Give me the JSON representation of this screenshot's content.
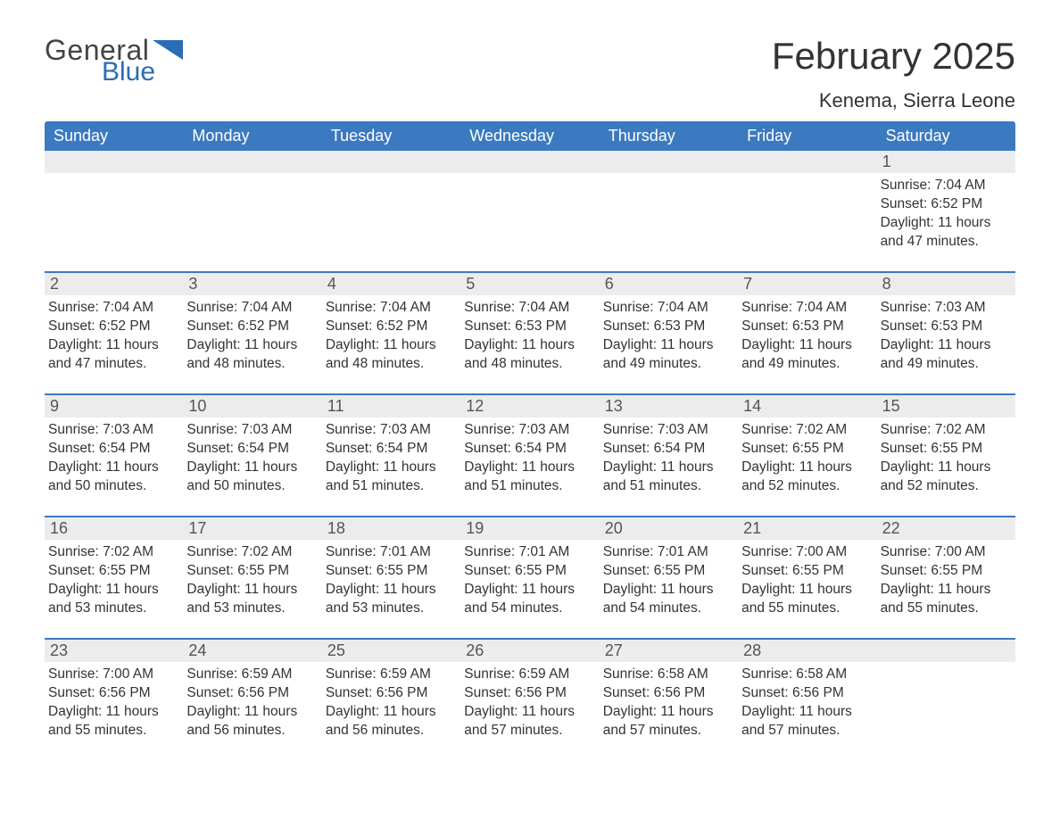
{
  "brand": {
    "word1": "General",
    "word2": "Blue",
    "color1": "#444444",
    "color2": "#2a6db5"
  },
  "title": "February 2025",
  "location": "Kenema, Sierra Leone",
  "header_bg": "#3b7ac0",
  "header_fg": "#ffffff",
  "daynum_bg": "#ececec",
  "divider_color": "#3b7ac0",
  "text_color": "#333333",
  "days_of_week": [
    "Sunday",
    "Monday",
    "Tuesday",
    "Wednesday",
    "Thursday",
    "Friday",
    "Saturday"
  ],
  "weeks": [
    [
      {
        "n": "",
        "sunrise": "",
        "sunset": "",
        "daylight": ""
      },
      {
        "n": "",
        "sunrise": "",
        "sunset": "",
        "daylight": ""
      },
      {
        "n": "",
        "sunrise": "",
        "sunset": "",
        "daylight": ""
      },
      {
        "n": "",
        "sunrise": "",
        "sunset": "",
        "daylight": ""
      },
      {
        "n": "",
        "sunrise": "",
        "sunset": "",
        "daylight": ""
      },
      {
        "n": "",
        "sunrise": "",
        "sunset": "",
        "daylight": ""
      },
      {
        "n": "1",
        "sunrise": "Sunrise: 7:04 AM",
        "sunset": "Sunset: 6:52 PM",
        "daylight": "Daylight: 11 hours and 47 minutes."
      }
    ],
    [
      {
        "n": "2",
        "sunrise": "Sunrise: 7:04 AM",
        "sunset": "Sunset: 6:52 PM",
        "daylight": "Daylight: 11 hours and 47 minutes."
      },
      {
        "n": "3",
        "sunrise": "Sunrise: 7:04 AM",
        "sunset": "Sunset: 6:52 PM",
        "daylight": "Daylight: 11 hours and 48 minutes."
      },
      {
        "n": "4",
        "sunrise": "Sunrise: 7:04 AM",
        "sunset": "Sunset: 6:52 PM",
        "daylight": "Daylight: 11 hours and 48 minutes."
      },
      {
        "n": "5",
        "sunrise": "Sunrise: 7:04 AM",
        "sunset": "Sunset: 6:53 PM",
        "daylight": "Daylight: 11 hours and 48 minutes."
      },
      {
        "n": "6",
        "sunrise": "Sunrise: 7:04 AM",
        "sunset": "Sunset: 6:53 PM",
        "daylight": "Daylight: 11 hours and 49 minutes."
      },
      {
        "n": "7",
        "sunrise": "Sunrise: 7:04 AM",
        "sunset": "Sunset: 6:53 PM",
        "daylight": "Daylight: 11 hours and 49 minutes."
      },
      {
        "n": "8",
        "sunrise": "Sunrise: 7:03 AM",
        "sunset": "Sunset: 6:53 PM",
        "daylight": "Daylight: 11 hours and 49 minutes."
      }
    ],
    [
      {
        "n": "9",
        "sunrise": "Sunrise: 7:03 AM",
        "sunset": "Sunset: 6:54 PM",
        "daylight": "Daylight: 11 hours and 50 minutes."
      },
      {
        "n": "10",
        "sunrise": "Sunrise: 7:03 AM",
        "sunset": "Sunset: 6:54 PM",
        "daylight": "Daylight: 11 hours and 50 minutes."
      },
      {
        "n": "11",
        "sunrise": "Sunrise: 7:03 AM",
        "sunset": "Sunset: 6:54 PM",
        "daylight": "Daylight: 11 hours and 51 minutes."
      },
      {
        "n": "12",
        "sunrise": "Sunrise: 7:03 AM",
        "sunset": "Sunset: 6:54 PM",
        "daylight": "Daylight: 11 hours and 51 minutes."
      },
      {
        "n": "13",
        "sunrise": "Sunrise: 7:03 AM",
        "sunset": "Sunset: 6:54 PM",
        "daylight": "Daylight: 11 hours and 51 minutes."
      },
      {
        "n": "14",
        "sunrise": "Sunrise: 7:02 AM",
        "sunset": "Sunset: 6:55 PM",
        "daylight": "Daylight: 11 hours and 52 minutes."
      },
      {
        "n": "15",
        "sunrise": "Sunrise: 7:02 AM",
        "sunset": "Sunset: 6:55 PM",
        "daylight": "Daylight: 11 hours and 52 minutes."
      }
    ],
    [
      {
        "n": "16",
        "sunrise": "Sunrise: 7:02 AM",
        "sunset": "Sunset: 6:55 PM",
        "daylight": "Daylight: 11 hours and 53 minutes."
      },
      {
        "n": "17",
        "sunrise": "Sunrise: 7:02 AM",
        "sunset": "Sunset: 6:55 PM",
        "daylight": "Daylight: 11 hours and 53 minutes."
      },
      {
        "n": "18",
        "sunrise": "Sunrise: 7:01 AM",
        "sunset": "Sunset: 6:55 PM",
        "daylight": "Daylight: 11 hours and 53 minutes."
      },
      {
        "n": "19",
        "sunrise": "Sunrise: 7:01 AM",
        "sunset": "Sunset: 6:55 PM",
        "daylight": "Daylight: 11 hours and 54 minutes."
      },
      {
        "n": "20",
        "sunrise": "Sunrise: 7:01 AM",
        "sunset": "Sunset: 6:55 PM",
        "daylight": "Daylight: 11 hours and 54 minutes."
      },
      {
        "n": "21",
        "sunrise": "Sunrise: 7:00 AM",
        "sunset": "Sunset: 6:55 PM",
        "daylight": "Daylight: 11 hours and 55 minutes."
      },
      {
        "n": "22",
        "sunrise": "Sunrise: 7:00 AM",
        "sunset": "Sunset: 6:55 PM",
        "daylight": "Daylight: 11 hours and 55 minutes."
      }
    ],
    [
      {
        "n": "23",
        "sunrise": "Sunrise: 7:00 AM",
        "sunset": "Sunset: 6:56 PM",
        "daylight": "Daylight: 11 hours and 55 minutes."
      },
      {
        "n": "24",
        "sunrise": "Sunrise: 6:59 AM",
        "sunset": "Sunset: 6:56 PM",
        "daylight": "Daylight: 11 hours and 56 minutes."
      },
      {
        "n": "25",
        "sunrise": "Sunrise: 6:59 AM",
        "sunset": "Sunset: 6:56 PM",
        "daylight": "Daylight: 11 hours and 56 minutes."
      },
      {
        "n": "26",
        "sunrise": "Sunrise: 6:59 AM",
        "sunset": "Sunset: 6:56 PM",
        "daylight": "Daylight: 11 hours and 57 minutes."
      },
      {
        "n": "27",
        "sunrise": "Sunrise: 6:58 AM",
        "sunset": "Sunset: 6:56 PM",
        "daylight": "Daylight: 11 hours and 57 minutes."
      },
      {
        "n": "28",
        "sunrise": "Sunrise: 6:58 AM",
        "sunset": "Sunset: 6:56 PM",
        "daylight": "Daylight: 11 hours and 57 minutes."
      },
      {
        "n": "",
        "sunrise": "",
        "sunset": "",
        "daylight": ""
      }
    ]
  ]
}
